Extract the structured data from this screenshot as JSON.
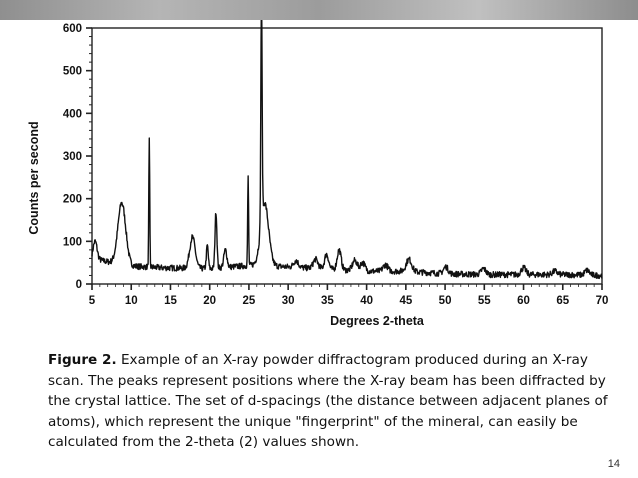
{
  "slide": {
    "caption_label": "Figure 2.",
    "caption_text": " Example of an X-ray powder diffractogram produced during an X-ray scan. The peaks represent positions where the X-ray beam has been diffracted by the crystal lattice. The set of d-spacings (the distance between adjacent planes of atoms), which represent the unique \"fingerprint\" of the mineral, can easily be calculated from the 2-theta (2) values shown.",
    "page_number": "14"
  },
  "chart_data": {
    "type": "line",
    "title": "",
    "xlabel": "Degrees 2-theta",
    "ylabel": "Counts per second",
    "xlim": [
      5,
      70
    ],
    "ylim": [
      0,
      600
    ],
    "xticks": [
      5,
      10,
      15,
      20,
      25,
      30,
      35,
      40,
      45,
      50,
      55,
      60,
      65,
      70
    ],
    "yticks": [
      0,
      100,
      200,
      300,
      400,
      500,
      600
    ],
    "grid": false,
    "line_color": "#111111",
    "baseline": [
      [
        5,
        60
      ],
      [
        8,
        48
      ],
      [
        10,
        42
      ],
      [
        14,
        38
      ],
      [
        20,
        36
      ],
      [
        26,
        45
      ],
      [
        30,
        40
      ],
      [
        35,
        35
      ],
      [
        40,
        30
      ],
      [
        45,
        30
      ],
      [
        50,
        24
      ],
      [
        55,
        22
      ],
      [
        60,
        22
      ],
      [
        65,
        22
      ],
      [
        70,
        20
      ]
    ],
    "peaks": [
      {
        "x": 5.4,
        "y": 100,
        "w": 0.25
      },
      {
        "x": 8.8,
        "y": 190,
        "w": 0.5
      },
      {
        "x": 12.3,
        "y": 335,
        "w": 0.06
      },
      {
        "x": 17.8,
        "y": 110,
        "w": 0.35
      },
      {
        "x": 19.7,
        "y": 90,
        "w": 0.12
      },
      {
        "x": 20.8,
        "y": 170,
        "w": 0.12
      },
      {
        "x": 22.0,
        "y": 80,
        "w": 0.2
      },
      {
        "x": 24.9,
        "y": 250,
        "w": 0.06
      },
      {
        "x": 26.6,
        "y": 575,
        "w": 0.08
      },
      {
        "x": 27.0,
        "y": 190,
        "w": 0.5
      },
      {
        "x": 31.0,
        "y": 55,
        "w": 0.3
      },
      {
        "x": 33.5,
        "y": 58,
        "w": 0.3
      },
      {
        "x": 34.9,
        "y": 70,
        "w": 0.25
      },
      {
        "x": 36.5,
        "y": 80,
        "w": 0.25
      },
      {
        "x": 38.5,
        "y": 55,
        "w": 0.3
      },
      {
        "x": 39.5,
        "y": 50,
        "w": 0.3
      },
      {
        "x": 42.4,
        "y": 45,
        "w": 0.3
      },
      {
        "x": 45.4,
        "y": 58,
        "w": 0.35
      },
      {
        "x": 50.1,
        "y": 40,
        "w": 0.3
      },
      {
        "x": 54.9,
        "y": 36,
        "w": 0.3
      },
      {
        "x": 60.0,
        "y": 38,
        "w": 0.3
      },
      {
        "x": 64.0,
        "y": 30,
        "w": 0.3
      },
      {
        "x": 68.1,
        "y": 32,
        "w": 0.3
      }
    ]
  }
}
